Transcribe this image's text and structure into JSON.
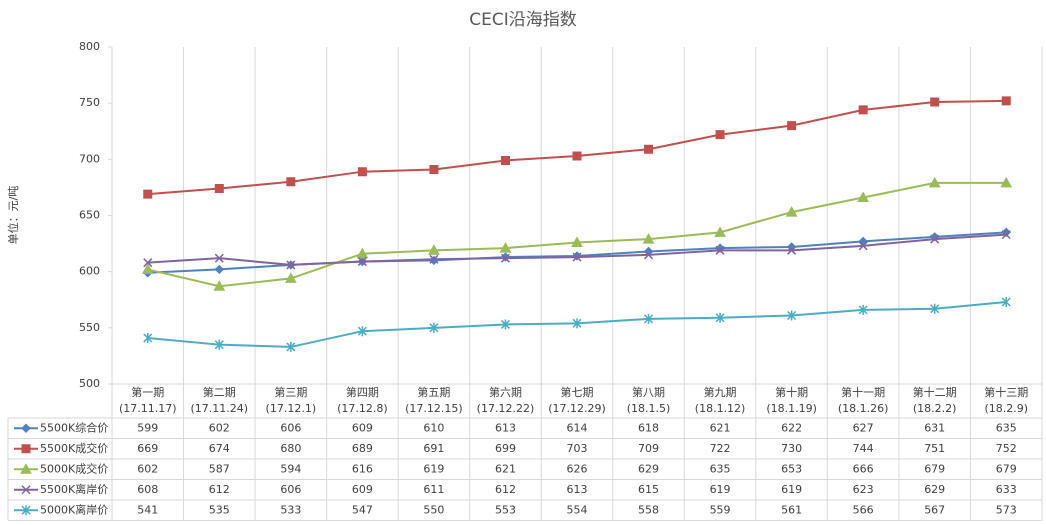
{
  "chart_data": {
    "type": "line",
    "title": "CECI沿海指数",
    "y_label": "单位：元/吨",
    "categories": [
      "第一期",
      "第二期",
      "第三期",
      "第四期",
      "第五期",
      "第六期",
      "第七期",
      "第八期",
      "第九期",
      "第十期",
      "第十一期",
      "第十二期",
      "第十三期"
    ],
    "dates": [
      "(17.11.17)",
      "(17.11.24)",
      "(17.12.1)",
      "(17.12.8)",
      "(17.12.15)",
      "(17.12.22)",
      "(17.12.29)",
      "(18.1.5)",
      "(18.1.12)",
      "(18.1.19)",
      "(18.1.26)",
      "(18.2.2)",
      "(18.2.9)"
    ],
    "series": [
      {
        "name": "5500K综合价",
        "color": "#4f81bd",
        "marker": "diamond",
        "values": [
          599,
          602,
          606,
          609,
          610,
          613,
          614,
          618,
          621,
          622,
          627,
          631,
          635
        ]
      },
      {
        "name": "5500K成交价",
        "color": "#c0504d",
        "marker": "square",
        "values": [
          669,
          674,
          680,
          689,
          691,
          699,
          703,
          709,
          722,
          730,
          744,
          751,
          752
        ]
      },
      {
        "name": "5000K成交价",
        "color": "#9bbb59",
        "marker": "triangle",
        "values": [
          602,
          587,
          594,
          616,
          619,
          621,
          626,
          629,
          635,
          653,
          666,
          679,
          679
        ]
      },
      {
        "name": "5500K离岸价",
        "color": "#8064a2",
        "marker": "x",
        "values": [
          608,
          612,
          606,
          609,
          611,
          612,
          613,
          615,
          619,
          619,
          623,
          629,
          633
        ]
      },
      {
        "name": "5000K离岸价",
        "color": "#4bacc6",
        "marker": "star",
        "values": [
          541,
          535,
          533,
          547,
          550,
          553,
          554,
          558,
          559,
          561,
          566,
          567,
          573
        ]
      }
    ],
    "ylim": [
      500,
      800
    ],
    "yticks": [
      500,
      550,
      600,
      650,
      700,
      750,
      800
    ],
    "grid": true,
    "data_table": true
  }
}
